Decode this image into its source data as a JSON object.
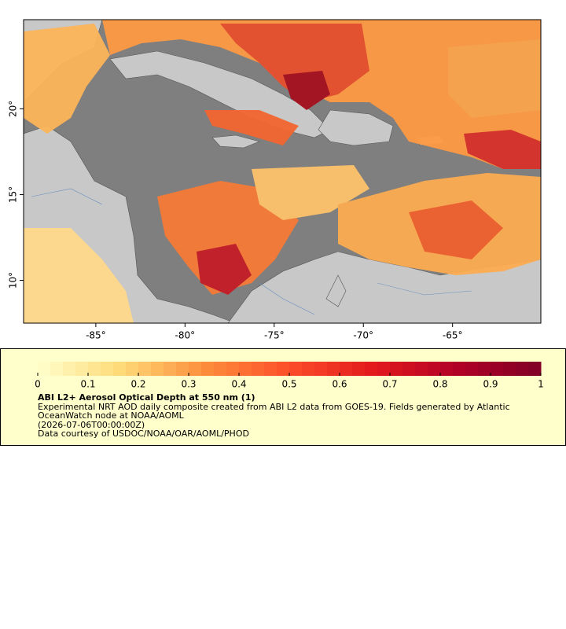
{
  "map": {
    "xlim": [
      -89.05,
      -60.05
    ],
    "ylim": [
      7.5,
      25.2
    ],
    "xticks": [
      {
        "value": -85,
        "label": "-85°"
      },
      {
        "value": -80,
        "label": "-80°"
      },
      {
        "value": -75,
        "label": "-75°"
      },
      {
        "value": -70,
        "label": "-70°"
      },
      {
        "value": -65,
        "label": "-65°"
      }
    ],
    "yticks": [
      {
        "value": 10,
        "label": "10°"
      },
      {
        "value": 15,
        "label": "15°"
      },
      {
        "value": 20,
        "label": "20°"
      }
    ]
  },
  "colorbar": {
    "lim": [
      0,
      1
    ],
    "ticks": [
      0,
      0.1,
      0.2,
      0.3,
      0.4,
      0.5,
      0.6,
      0.7,
      0.8,
      0.9,
      1
    ]
  },
  "legend": {
    "title": "ABI L2+ Aerosol Optical Depth at 550 nm (1)",
    "description": "Experimental NRT AOD daily composite created from ABI L2 data from GOES-19. Fields generated by Atlantic OceanWatch node at NOAA/AOML",
    "time": "(2026-07-06T00:00:00Z)",
    "credit": "Data courtesy of USDOC/NOAA/OAR/AOML/PHOD"
  }
}
